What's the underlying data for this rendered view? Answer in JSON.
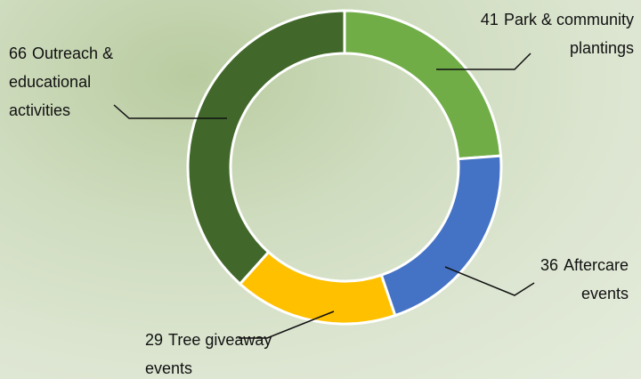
{
  "chart_data": {
    "type": "donut",
    "categories": [
      "Park & community plantings",
      "Aftercare events",
      "Tree giveaway events",
      "Outreach & educational activities"
    ],
    "values": [
      41,
      36,
      29,
      66
    ],
    "colors": [
      "#70ad47",
      "#4472c4",
      "#ffc000",
      "#41682a"
    ]
  }
}
